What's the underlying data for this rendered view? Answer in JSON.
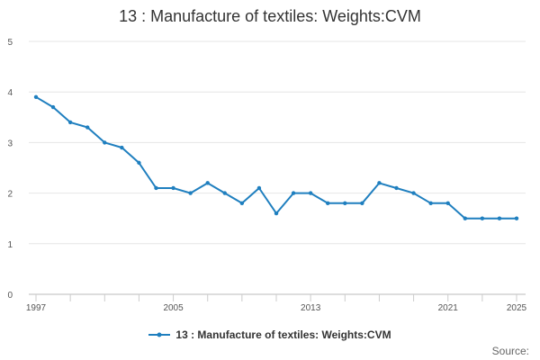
{
  "chart_data": {
    "type": "line",
    "title": "13 : Manufacture of textiles: Weights:CVM",
    "xlabel": "",
    "ylabel": "",
    "ylim": [
      0,
      5
    ],
    "xlim": [
      1997,
      2025
    ],
    "y_ticks": [
      0,
      1,
      2,
      3,
      4,
      5
    ],
    "x_tick_labels": [
      "1997",
      "2005",
      "2013",
      "2021",
      "2025"
    ],
    "x_tick_marks": [
      1997,
      1999,
      2001,
      2003,
      2005,
      2007,
      2009,
      2011,
      2013,
      2015,
      2017,
      2019,
      2021,
      2023,
      2025
    ],
    "grid": true,
    "legend_position": "bottom",
    "series": [
      {
        "name": "13 : Manufacture of textiles: Weights:CVM",
        "color": "#1f7fbf",
        "x": [
          1997,
          1998,
          1999,
          2000,
          2001,
          2002,
          2003,
          2004,
          2005,
          2006,
          2007,
          2008,
          2009,
          2010,
          2011,
          2012,
          2013,
          2014,
          2015,
          2016,
          2017,
          2018,
          2019,
          2020,
          2021,
          2022,
          2023,
          2024,
          2025
        ],
        "values": [
          3.9,
          3.7,
          3.4,
          3.3,
          3.0,
          2.9,
          2.6,
          2.1,
          2.1,
          2.0,
          2.2,
          2.0,
          1.8,
          2.1,
          1.6,
          2.0,
          2.0,
          1.8,
          1.8,
          1.8,
          2.2,
          2.1,
          2.0,
          1.8,
          1.8,
          1.5,
          1.5,
          1.5,
          1.5
        ]
      }
    ]
  },
  "legend_label": "13 : Manufacture of textiles: Weights:CVM",
  "source_label": "Source:"
}
